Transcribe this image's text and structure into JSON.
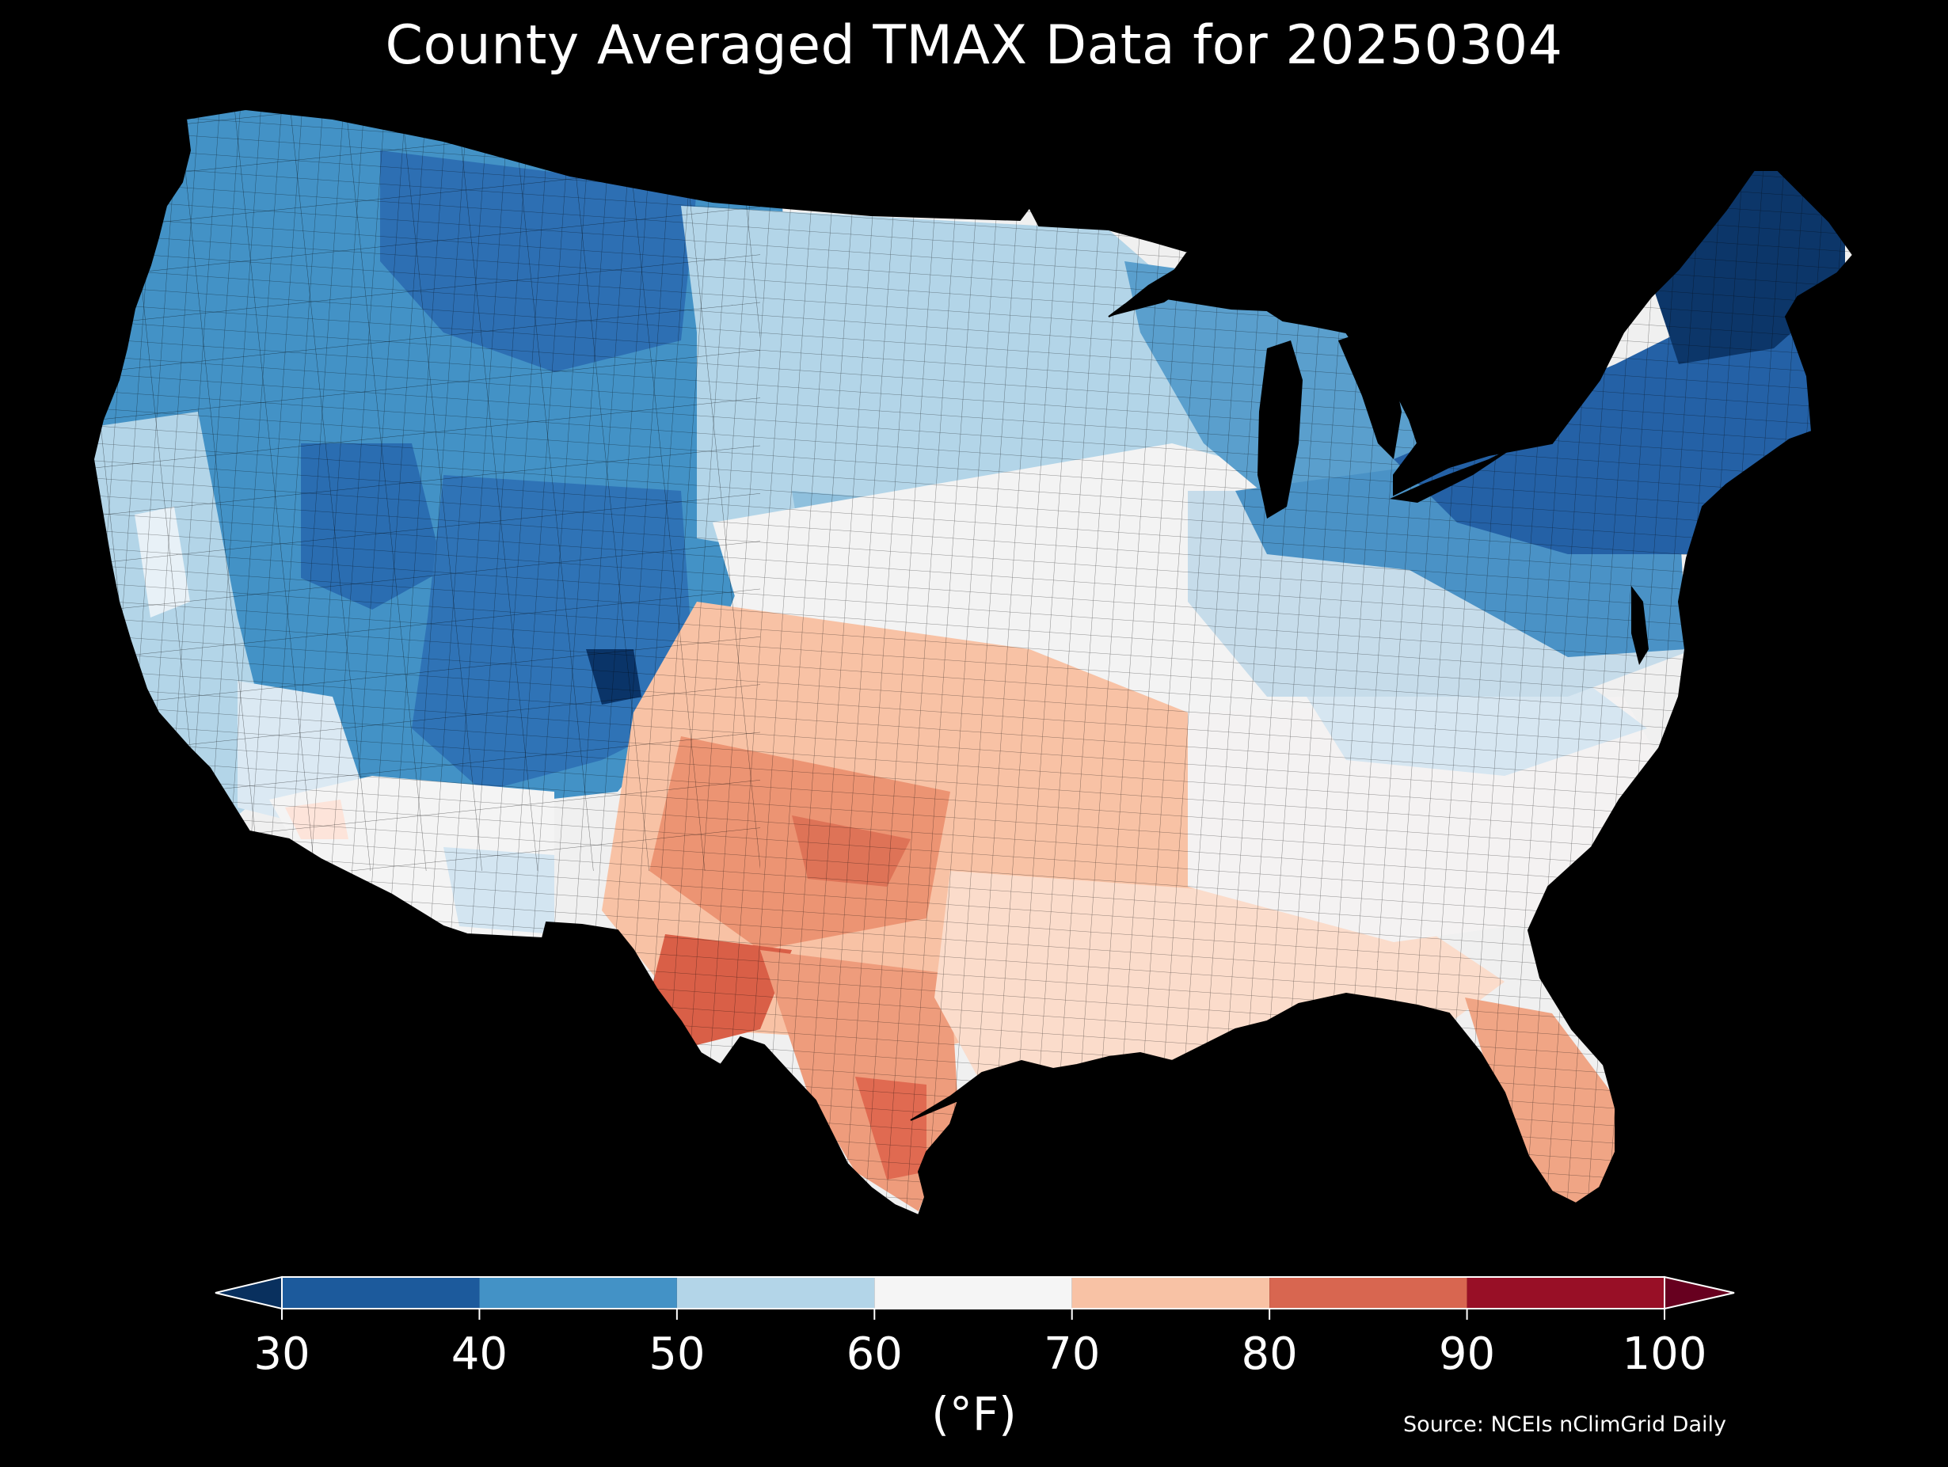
{
  "title": "County Averaged TMAX Data for 20250304",
  "colorbar": {
    "ticks": [
      "30",
      "40",
      "50",
      "60",
      "70",
      "80",
      "90",
      "100"
    ],
    "units": "(°F)",
    "bins": [
      {
        "from": 30,
        "to": 40,
        "color": "#1c5a9c"
      },
      {
        "from": 40,
        "to": 50,
        "color": "#4392c6"
      },
      {
        "from": 50,
        "to": 60,
        "color": "#b3d5e8"
      },
      {
        "from": 60,
        "to": 70,
        "color": "#f5f5f5"
      },
      {
        "from": 70,
        "to": 80,
        "color": "#f8c2a5"
      },
      {
        "from": 80,
        "to": 90,
        "color": "#d86650"
      },
      {
        "from": 90,
        "to": 100,
        "color": "#980f26"
      }
    ],
    "under_color": "#09305e",
    "over_color": "#67001f"
  },
  "source": "Source: NCEIs nClimGrid Daily",
  "regions": [
    {
      "id": "northwest",
      "tmax_band": "40-50"
    },
    {
      "id": "northern-rockies-plains",
      "tmax_band": "30-40"
    },
    {
      "id": "great-basin",
      "tmax_band": "30-40"
    },
    {
      "id": "california-coast",
      "tmax_band": "50-60"
    },
    {
      "id": "southern-california-desert",
      "tmax_band": "60-70"
    },
    {
      "id": "colorado-rockies",
      "tmax_band": "30-40"
    },
    {
      "id": "northern-plains",
      "tmax_band": "50-60"
    },
    {
      "id": "central-plains",
      "tmax_band": "60-70"
    },
    {
      "id": "west-texas",
      "tmax_band": "80-90"
    },
    {
      "id": "south-texas",
      "tmax_band": "80-90"
    },
    {
      "id": "gulf-coast",
      "tmax_band": "70-80"
    },
    {
      "id": "southeast",
      "tmax_band": "60-70"
    },
    {
      "id": "florida",
      "tmax_band": "70-80"
    },
    {
      "id": "ohio-valley",
      "tmax_band": "50-60"
    },
    {
      "id": "great-lakes",
      "tmax_band": "40-50"
    },
    {
      "id": "northeast",
      "tmax_band": "30-40"
    },
    {
      "id": "maine",
      "tmax_band": "<30"
    }
  ]
}
